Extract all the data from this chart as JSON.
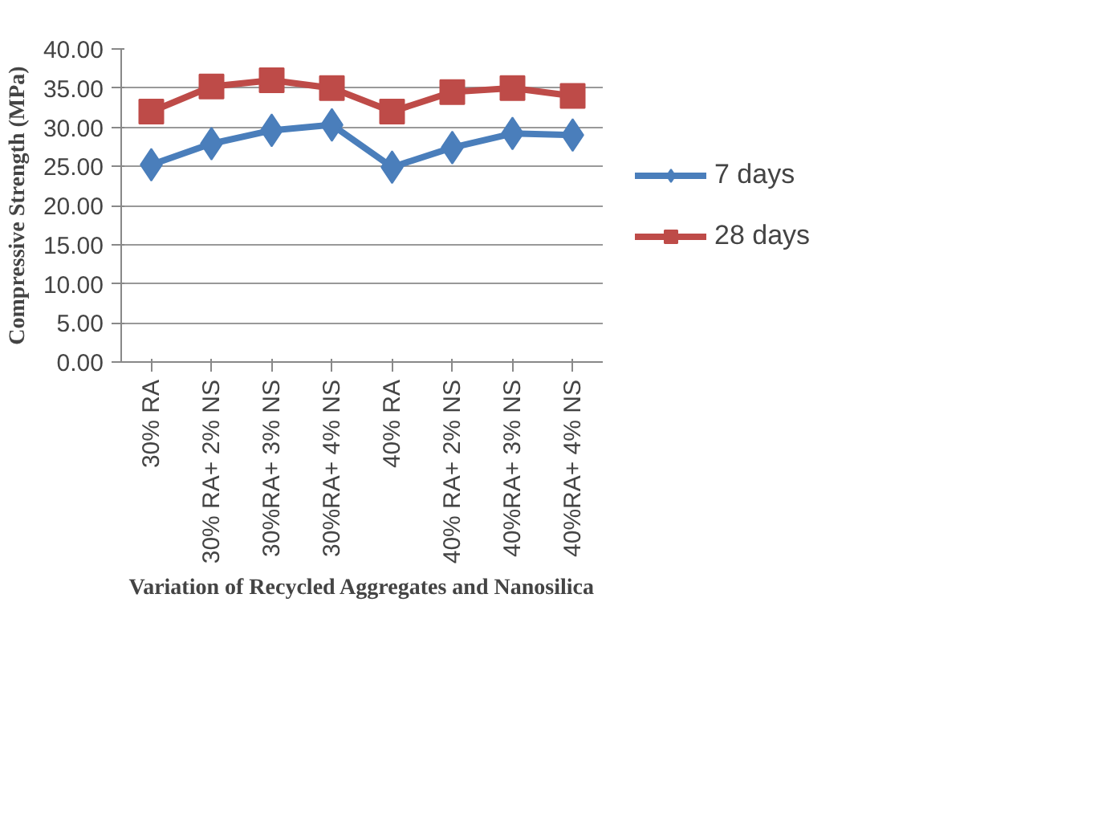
{
  "chart_data": {
    "type": "line",
    "xlabel": "Variation of Recycled Aggregates and Nanosilica",
    "ylabel": "Compressive Strength (MPa)",
    "categories": [
      "30% RA",
      "30% RA+ 2% NS",
      "30%RA+ 3% NS",
      "30%RA+ 4% NS",
      "40% RA",
      "40% RA+ 2% NS",
      "40%RA+ 3% NS",
      "40%RA+ 4% NS"
    ],
    "series": [
      {
        "name": "7 days",
        "color": "#4a7ebb",
        "marker": "diamond",
        "values": [
          25.2,
          27.9,
          29.6,
          30.3,
          24.9,
          27.4,
          29.2,
          29.0
        ]
      },
      {
        "name": "28 days",
        "color": "#be4b48",
        "marker": "square",
        "values": [
          32.0,
          35.2,
          36.0,
          35.0,
          32.0,
          34.5,
          35.0,
          34.0
        ]
      }
    ],
    "ylim": [
      0,
      40
    ],
    "yticks": [
      {
        "value": 0,
        "label": "0.00"
      },
      {
        "value": 5,
        "label": "5.00"
      },
      {
        "value": 10,
        "label": "10.00"
      },
      {
        "value": 15,
        "label": "15.00"
      },
      {
        "value": 20,
        "label": "20.00"
      },
      {
        "value": 25,
        "label": "25.00"
      },
      {
        "value": 30,
        "label": "30.00"
      },
      {
        "value": 35,
        "label": "35.00"
      },
      {
        "value": 40,
        "label": "40.00"
      }
    ],
    "grid": "y",
    "legend": "right"
  }
}
